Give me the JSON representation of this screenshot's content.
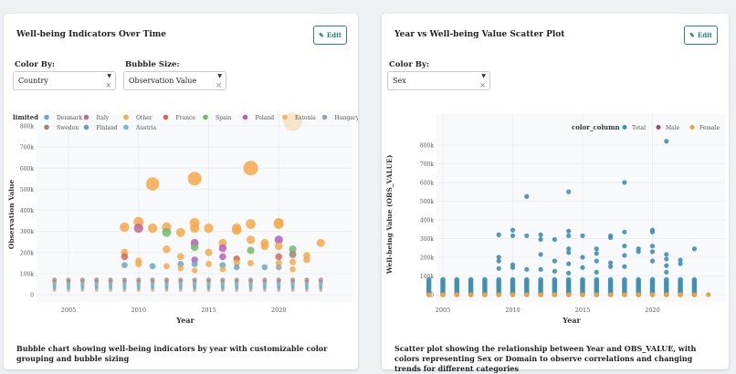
{
  "left": {
    "title": "Well-being Indicators Over Time",
    "edit_label": "Edit",
    "color_by_label": "Color By:",
    "color_by_value": "Country",
    "bubble_size_label": "Bubble Size:",
    "bubble_size_value": "Observation Value",
    "caption": "Bubble chart showing well-being indicators by year with customizable color grouping and bubble sizing"
  },
  "right": {
    "title": "Year vs Well-being Value Scatter Plot",
    "edit_label": "Edit",
    "color_by_label": "Color By:",
    "color_by_value": "Sex",
    "caption": "Scatter plot showing the relationship between Year and OBS_VALUE, with colors representing Sex or Domain to observe correlations and changing trends for different categories"
  },
  "chart_data": [
    {
      "type": "scatter",
      "xlabel": "Year",
      "ylabel": "Observation Value",
      "legend_title": "limited",
      "legend_placement": "top",
      "xticks": [
        "2005",
        "2010",
        "2015",
        "2020"
      ],
      "yticks": [
        "0",
        "100k",
        "200k",
        "300k",
        "400k",
        "500k",
        "600k",
        "700k",
        "800k"
      ],
      "xlim": [
        2003,
        2024
      ],
      "ylim": [
        0,
        850000
      ],
      "series": [
        {
          "name": "Denmark",
          "color": "#6aa8c8"
        },
        {
          "name": "Italy",
          "color": "#c06a94"
        },
        {
          "name": "Other",
          "color": "#f4a94a"
        },
        {
          "name": "France",
          "color": "#d06a55"
        },
        {
          "name": "Spain",
          "color": "#74b96e"
        },
        {
          "name": "Poland",
          "color": "#b45fbe"
        },
        {
          "name": "Estonia",
          "color": "#f5b556"
        },
        {
          "name": "Hungary",
          "color": "#97a4ab"
        },
        {
          "name": "Sweden",
          "color": "#a08373"
        },
        {
          "name": "Finland",
          "color": "#5fa3c2"
        },
        {
          "name": "Austria",
          "color": "#79b3cf"
        }
      ],
      "baseline_values": [
        20000,
        30000,
        40000,
        50000,
        60000,
        70000
      ],
      "baseline_years": [
        2004,
        2005,
        2006,
        2007,
        2008,
        2009,
        2010,
        2011,
        2012,
        2013,
        2014,
        2015,
        2016,
        2017,
        2018,
        2019,
        2020,
        2021,
        2022,
        2023
      ],
      "points": [
        [
          2011,
          525000,
          "Other"
        ],
        [
          2014,
          550000,
          "Other"
        ],
        [
          2018,
          600000,
          "Other"
        ],
        [
          2021,
          820000,
          "Estonia"
        ],
        [
          2009,
          320000,
          "Other"
        ],
        [
          2010,
          345000,
          "Other"
        ],
        [
          2010,
          315000,
          "Italy"
        ],
        [
          2011,
          315000,
          "Other"
        ],
        [
          2012,
          320000,
          "Other"
        ],
        [
          2012,
          295000,
          "Spain"
        ],
        [
          2013,
          295000,
          "Other"
        ],
        [
          2014,
          340000,
          "Other"
        ],
        [
          2014,
          315000,
          "Other"
        ],
        [
          2015,
          315000,
          "Other"
        ],
        [
          2017,
          315000,
          "Other"
        ],
        [
          2017,
          305000,
          "Other"
        ],
        [
          2018,
          335000,
          "Other"
        ],
        [
          2020,
          340000,
          "Other"
        ],
        [
          2020,
          335000,
          "Other"
        ],
        [
          2009,
          200000,
          "Other"
        ],
        [
          2009,
          180000,
          "France"
        ],
        [
          2009,
          140000,
          "Denmark"
        ],
        [
          2010,
          160000,
          "Other"
        ],
        [
          2010,
          145000,
          "Other"
        ],
        [
          2011,
          135000,
          "Denmark"
        ],
        [
          2012,
          215000,
          "Other"
        ],
        [
          2012,
          135000,
          "Other"
        ],
        [
          2013,
          180000,
          "Other"
        ],
        [
          2013,
          145000,
          "Denmark"
        ],
        [
          2013,
          125000,
          "Other"
        ],
        [
          2014,
          245000,
          "Poland"
        ],
        [
          2014,
          225000,
          "Spain"
        ],
        [
          2014,
          165000,
          "Poland"
        ],
        [
          2014,
          145000,
          "Denmark"
        ],
        [
          2014,
          115000,
          "Other"
        ],
        [
          2015,
          200000,
          "Other"
        ],
        [
          2015,
          145000,
          "Other"
        ],
        [
          2016,
          245000,
          "Other"
        ],
        [
          2016,
          220000,
          "Poland"
        ],
        [
          2016,
          180000,
          "Poland"
        ],
        [
          2016,
          140000,
          "Denmark"
        ],
        [
          2016,
          120000,
          "Other"
        ],
        [
          2017,
          170000,
          "France"
        ],
        [
          2017,
          150000,
          "Other"
        ],
        [
          2017,
          130000,
          "Denmark"
        ],
        [
          2018,
          260000,
          "Other"
        ],
        [
          2018,
          210000,
          "Spain"
        ],
        [
          2018,
          150000,
          "Other"
        ],
        [
          2019,
          245000,
          "Other"
        ],
        [
          2019,
          230000,
          "Other"
        ],
        [
          2019,
          130000,
          "Denmark"
        ],
        [
          2020,
          260000,
          "Poland"
        ],
        [
          2020,
          230000,
          "Other"
        ],
        [
          2020,
          180000,
          "France"
        ],
        [
          2020,
          150000,
          "Other"
        ],
        [
          2020,
          130000,
          "Hungary"
        ],
        [
          2021,
          215000,
          "Spain"
        ],
        [
          2021,
          190000,
          "Sweden"
        ],
        [
          2021,
          155000,
          "Other"
        ],
        [
          2021,
          120000,
          "Other"
        ],
        [
          2022,
          185000,
          "Other"
        ],
        [
          2022,
          165000,
          "Other"
        ],
        [
          2023,
          245000,
          "Other"
        ]
      ]
    },
    {
      "type": "scatter",
      "xlabel": "Year",
      "ylabel": "Well-being Value (OBS_VALUE)",
      "legend_title": "color_column",
      "legend_placement": "top-right",
      "xticks": [
        "2005",
        "2010",
        "2015",
        "2020"
      ],
      "yticks": [
        "0",
        "100k",
        "200k",
        "300k",
        "400k",
        "500k",
        "600k",
        "700k",
        "800k"
      ],
      "xlim": [
        2003,
        2025
      ],
      "ylim": [
        0,
        850000
      ],
      "series": [
        {
          "name": "Total",
          "color": "#3f8fb2"
        },
        {
          "name": "Male",
          "color": "#a8456b"
        },
        {
          "name": "Female",
          "color": "#f0a035"
        }
      ],
      "baseline_values": [
        0,
        10000,
        20000,
        30000,
        40000,
        50000,
        60000,
        70000,
        80000
      ],
      "baseline_years": [
        2004,
        2005,
        2006,
        2007,
        2008,
        2009,
        2010,
        2011,
        2012,
        2013,
        2014,
        2015,
        2016,
        2017,
        2018,
        2019,
        2020,
        2021,
        2022,
        2023
      ],
      "female_years": [
        2004,
        2005,
        2006,
        2007,
        2008,
        2009,
        2010,
        2011,
        2012,
        2013,
        2014,
        2015,
        2016,
        2017,
        2018,
        2019,
        2020,
        2021,
        2022,
        2023,
        2024
      ],
      "points": [
        [
          2011,
          525000,
          "Total"
        ],
        [
          2014,
          550000,
          "Total"
        ],
        [
          2018,
          600000,
          "Total"
        ],
        [
          2021,
          820000,
          "Total"
        ],
        [
          2009,
          320000,
          "Total"
        ],
        [
          2010,
          345000,
          "Total"
        ],
        [
          2010,
          315000,
          "Total"
        ],
        [
          2011,
          315000,
          "Total"
        ],
        [
          2012,
          320000,
          "Total"
        ],
        [
          2012,
          295000,
          "Total"
        ],
        [
          2013,
          295000,
          "Total"
        ],
        [
          2014,
          340000,
          "Total"
        ],
        [
          2014,
          315000,
          "Total"
        ],
        [
          2015,
          315000,
          "Total"
        ],
        [
          2017,
          315000,
          "Total"
        ],
        [
          2017,
          305000,
          "Total"
        ],
        [
          2018,
          335000,
          "Total"
        ],
        [
          2020,
          345000,
          "Total"
        ],
        [
          2020,
          335000,
          "Total"
        ],
        [
          2009,
          200000,
          "Total"
        ],
        [
          2009,
          180000,
          "Total"
        ],
        [
          2009,
          140000,
          "Total"
        ],
        [
          2010,
          160000,
          "Total"
        ],
        [
          2010,
          145000,
          "Total"
        ],
        [
          2011,
          135000,
          "Total"
        ],
        [
          2012,
          215000,
          "Total"
        ],
        [
          2012,
          135000,
          "Total"
        ],
        [
          2013,
          180000,
          "Total"
        ],
        [
          2013,
          125000,
          "Total"
        ],
        [
          2014,
          245000,
          "Total"
        ],
        [
          2014,
          225000,
          "Total"
        ],
        [
          2014,
          165000,
          "Total"
        ],
        [
          2014,
          115000,
          "Total"
        ],
        [
          2015,
          200000,
          "Total"
        ],
        [
          2015,
          145000,
          "Total"
        ],
        [
          2016,
          245000,
          "Total"
        ],
        [
          2016,
          220000,
          "Total"
        ],
        [
          2016,
          180000,
          "Total"
        ],
        [
          2016,
          120000,
          "Total"
        ],
        [
          2017,
          170000,
          "Total"
        ],
        [
          2017,
          150000,
          "Total"
        ],
        [
          2018,
          260000,
          "Total"
        ],
        [
          2018,
          210000,
          "Total"
        ],
        [
          2018,
          150000,
          "Total"
        ],
        [
          2019,
          245000,
          "Total"
        ],
        [
          2019,
          230000,
          "Total"
        ],
        [
          2020,
          260000,
          "Total"
        ],
        [
          2020,
          230000,
          "Total"
        ],
        [
          2020,
          180000,
          "Total"
        ],
        [
          2021,
          215000,
          "Total"
        ],
        [
          2021,
          190000,
          "Total"
        ],
        [
          2021,
          155000,
          "Total"
        ],
        [
          2021,
          120000,
          "Total"
        ],
        [
          2022,
          185000,
          "Total"
        ],
        [
          2022,
          165000,
          "Total"
        ],
        [
          2023,
          245000,
          "Total"
        ]
      ]
    }
  ]
}
